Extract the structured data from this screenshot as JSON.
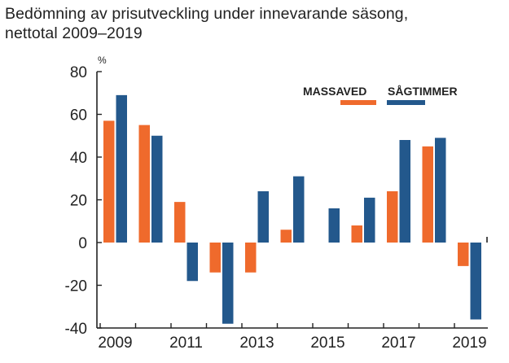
{
  "title_lines": [
    "Bedömning av prisutveckling under innevarande säsong,",
    "nettotal 2009–2019"
  ],
  "chart_data": {
    "type": "bar",
    "ylabel": "%",
    "ylim": [
      -40,
      80
    ],
    "yticks": [
      80,
      60,
      40,
      20,
      0,
      -20,
      -40
    ],
    "categories": [
      "2009",
      "2010",
      "2011",
      "2012",
      "2013",
      "2014",
      "2015",
      "2016",
      "2017",
      "2018",
      "2019"
    ],
    "xtick_labels": [
      "2009",
      "2011",
      "2013",
      "2015",
      "2017",
      "2019"
    ],
    "series": [
      {
        "name": "MASSAVED",
        "color": "#ef6a2c",
        "values": [
          57,
          55,
          19,
          -14,
          -14,
          6,
          0,
          8,
          24,
          45,
          -11
        ]
      },
      {
        "name": "SÅGTIMMER",
        "color": "#23588c",
        "values": [
          69,
          50,
          -18,
          -38,
          24,
          31,
          16,
          21,
          48,
          49,
          -36
        ]
      }
    ],
    "legend": "top-right",
    "grid": false
  }
}
